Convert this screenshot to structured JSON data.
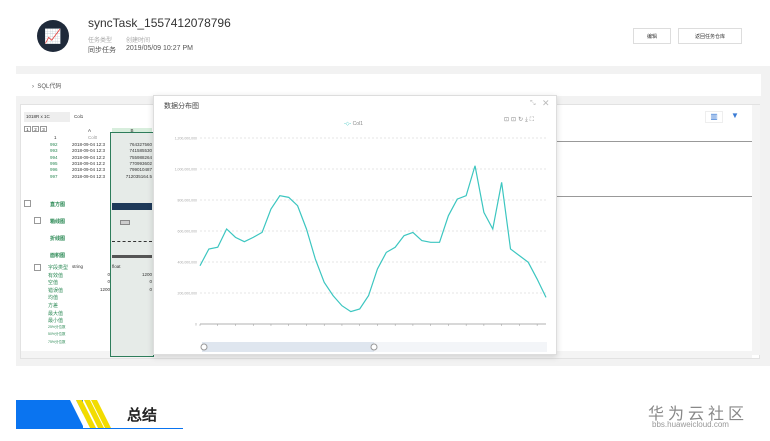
{
  "header": {
    "title": "syncTask_1557412078796",
    "type_label": "任务类型",
    "time_label": "创建时间",
    "type_value": "同步任务",
    "time_value": "2019/05/09 10:27 PM",
    "edit_button": "编辑",
    "back_button": "返回任务仓库"
  },
  "sql_section": {
    "label": "SQL代码"
  },
  "table": {
    "size": "1018R x 1C",
    "col_name": "Col1",
    "level_buttons": [
      "1",
      "2",
      "3"
    ],
    "col_letters": [
      "A",
      "B"
    ],
    "row_header": "1",
    "col_headers": [
      "Col0",
      "Col1"
    ],
    "rows": [
      [
        "992",
        "2018-09-04 12:3",
        "764327560"
      ],
      [
        "993",
        "2018-09-04 12:3",
        "741585530"
      ],
      [
        "994",
        "2018-09-04 12:2",
        "755988264"
      ],
      [
        "995",
        "2018-09-04 12:2",
        "770993602"
      ],
      [
        "996",
        "2018-09-04 12:3",
        "799010487"
      ],
      [
        "997",
        "2018-09-04 12:3",
        "712035164.5"
      ]
    ],
    "viz_labels": [
      "直方图",
      "箱线图",
      "折线图",
      "面积图"
    ],
    "stat_labels": [
      "字段类型",
      "有效值",
      "空值",
      "错误值",
      "均值",
      "方差",
      "最大值",
      "最小值",
      "25%分位数",
      "50%分位数",
      "75%分位数"
    ],
    "stat_a": [
      "string",
      "0",
      "0",
      "1200",
      "",
      "",
      "",
      "",
      "",
      "",
      ""
    ],
    "stat_b": [
      "float",
      "1200",
      "0",
      "0",
      "",
      "",
      "",
      "",
      "",
      "",
      ""
    ]
  },
  "dialog": {
    "title": "数据分布图",
    "legend": "Col1"
  },
  "chart_data": {
    "type": "line",
    "series": [
      {
        "name": "Col1",
        "values": [
          376,
          484,
          495,
          613,
          559,
          531,
          559,
          591,
          742,
          828,
          817,
          763,
          613,
          419,
          269,
          183,
          118,
          80,
          97,
          183,
          355,
          462,
          495,
          570,
          591,
          538,
          527,
          527,
          699,
          806,
          828,
          1021,
          720,
          613,
          914,
          484,
          441,
          398,
          290,
          172
        ]
      }
    ],
    "value_unit_multiplier": 1000000,
    "yticks": [
      "0",
      "200,000,000",
      "400,000,000",
      "600,000,000",
      "800,000,000",
      "1,000,000,000",
      "1,200,000,000"
    ],
    "ylim": [
      0,
      1200000000
    ],
    "grid": true,
    "legend": "top"
  },
  "section": {
    "title": "总结"
  },
  "brand": {
    "name": "华为云社区",
    "url": "bbs.huaweicloud.com"
  },
  "colors": {
    "line": "#3cc6c0",
    "section_blue": "#0a74f0",
    "section_yellow": "#f2dc00"
  }
}
